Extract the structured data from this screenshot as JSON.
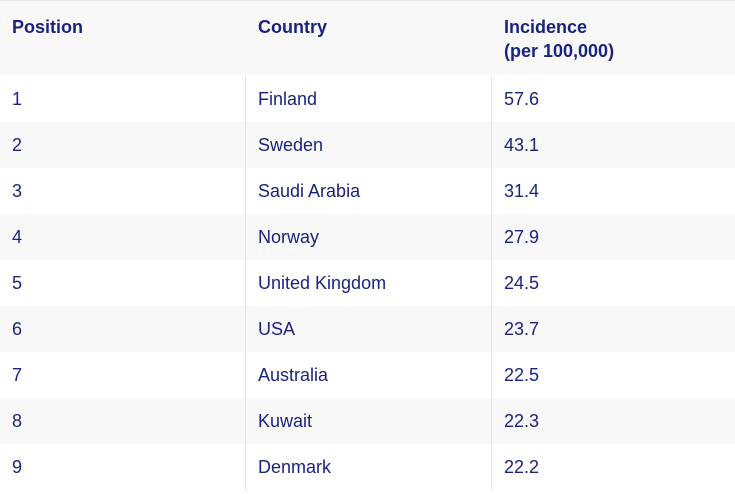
{
  "table": {
    "headers": {
      "position": "Position",
      "country": "Country",
      "incidence_line1": "Incidence",
      "incidence_line2": "(per 100,000)"
    },
    "rows": [
      {
        "position": "1",
        "country": "Finland",
        "incidence": "57.6"
      },
      {
        "position": "2",
        "country": "Sweden",
        "incidence": "43.1"
      },
      {
        "position": "3",
        "country": "Saudi Arabia",
        "incidence": "31.4"
      },
      {
        "position": "4",
        "country": "Norway",
        "incidence": "27.9"
      },
      {
        "position": "5",
        "country": "United Kingdom",
        "incidence": "24.5"
      },
      {
        "position": "6",
        "country": "USA",
        "incidence": "23.7"
      },
      {
        "position": "7",
        "country": "Australia",
        "incidence": "22.5"
      },
      {
        "position": "8",
        "country": "Kuwait",
        "incidence": "22.3"
      },
      {
        "position": "9",
        "country": "Denmark",
        "incidence": "22.2"
      }
    ]
  }
}
